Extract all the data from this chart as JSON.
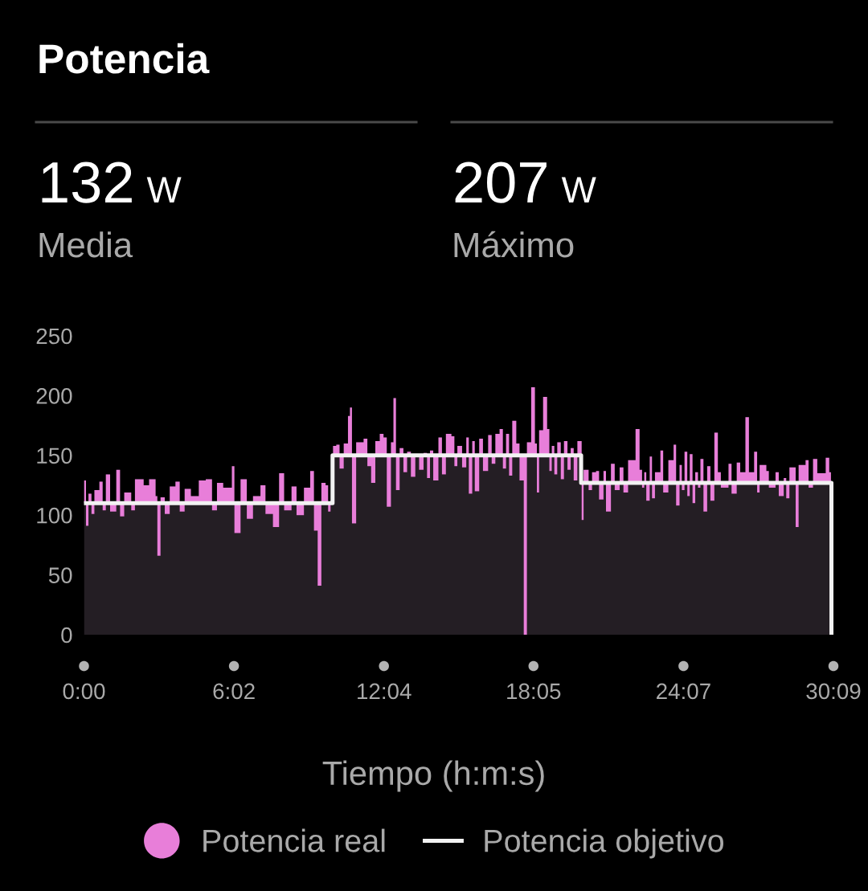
{
  "chart_data": {
    "type": "area",
    "title": "Potencia",
    "xlabel": "Tiempo (h:m:s)",
    "annotations": [
      "132 W",
      "Media",
      "207 W",
      "Máximo"
    ],
    "xlim": [
      0,
      30.15
    ],
    "xticks": [
      {
        "value": 0,
        "label": "0:00"
      },
      {
        "value": 6.033,
        "label": "6:02"
      },
      {
        "value": 12.067,
        "label": "12:04"
      },
      {
        "value": 18.083,
        "label": "18:05"
      },
      {
        "value": 24.117,
        "label": "24:07"
      },
      {
        "value": 30.15,
        "label": "30:09"
      }
    ],
    "ylim": [
      0,
      250
    ],
    "yticks": [
      0,
      50,
      100,
      150,
      200,
      250
    ],
    "legend": "bottom",
    "series": [
      {
        "name": "Potencia real",
        "color": "#e87ed9",
        "x": [
          0.0,
          0.08,
          0.18,
          0.3,
          0.42,
          0.62,
          0.75,
          0.88,
          1.05,
          1.3,
          1.45,
          1.62,
          1.9,
          2.05,
          2.4,
          2.62,
          2.88,
          2.95,
          3.08,
          3.25,
          3.45,
          3.68,
          3.85,
          4.05,
          4.3,
          4.62,
          4.9,
          5.15,
          5.35,
          5.6,
          5.95,
          6.05,
          6.3,
          6.55,
          6.8,
          7.1,
          7.3,
          7.6,
          7.85,
          8.05,
          8.35,
          8.55,
          8.85,
          9.1,
          9.25,
          9.4,
          9.55,
          9.72,
          9.82,
          9.92,
          10.02,
          10.15,
          10.28,
          10.45,
          10.62,
          10.7,
          10.78,
          10.95,
          11.25,
          11.4,
          11.55,
          11.72,
          11.9,
          12.05,
          12.18,
          12.35,
          12.45,
          12.55,
          12.7,
          12.85,
          13.0,
          13.15,
          13.33,
          13.48,
          13.66,
          13.8,
          13.92,
          14.05,
          14.26,
          14.4,
          14.56,
          14.78,
          14.9,
          15.02,
          15.21,
          15.38,
          15.48,
          15.62,
          15.72,
          15.9,
          16.05,
          16.26,
          16.4,
          16.55,
          16.72,
          16.85,
          16.98,
          17.1,
          17.23,
          17.39,
          17.52,
          17.69,
          17.82,
          17.99,
          18.14,
          18.22,
          18.31,
          18.47,
          18.63,
          18.72,
          18.82,
          18.92,
          19.04,
          19.18,
          19.31,
          19.45,
          19.58,
          19.7,
          19.85,
          20.02,
          20.1,
          20.3,
          20.44,
          20.6,
          20.72,
          20.9,
          21.0,
          21.2,
          21.35,
          21.55,
          21.7,
          21.89,
          22.19,
          22.35,
          22.45,
          22.54,
          22.62,
          22.76,
          22.85,
          22.97,
          23.19,
          23.3,
          23.51,
          23.72,
          23.82,
          23.96,
          24.05,
          24.16,
          24.27,
          24.37,
          24.48,
          24.59,
          24.7,
          24.8,
          24.92,
          25.07,
          25.2,
          25.36,
          25.5,
          25.62,
          25.93,
          26.05,
          26.26,
          26.4,
          26.61,
          26.75,
          26.96,
          27.08,
          27.18,
          27.45,
          27.55,
          27.82,
          27.95,
          28.15,
          28.25,
          28.38,
          28.63,
          28.75,
          29.03,
          29.15,
          29.33,
          29.5,
          29.84,
          29.98,
          30.05
        ],
        "values": [
          129,
          91,
          118,
          101,
          121,
          128,
          104,
          134,
          103,
          138,
          99,
          119,
          104,
          130,
          125,
          130,
          116,
          66,
          115,
          101,
          124,
          128,
          103,
          122,
          116,
          129,
          130,
          104,
          127,
          123,
          141,
          85,
          130,
          97,
          116,
          125,
          101,
          90,
          135,
          104,
          124,
          100,
          123,
          137,
          87,
          41,
          127,
          125,
          103,
          112,
          158,
          159,
          139,
          160,
          183,
          190,
          93,
          161,
          164,
          141,
          127,
          162,
          168,
          165,
          107,
          161,
          198,
          121,
          156,
          136,
          153,
          132,
          151,
          138,
          152,
          131,
          154,
          129,
          165,
          134,
          168,
          166,
          141,
          158,
          140,
          165,
          118,
          162,
          120,
          164,
          137,
          167,
          143,
          168,
          172,
          139,
          168,
          133,
          179,
          160,
          129,
          0,
          161,
          207,
          160,
          119,
          171,
          199,
          172,
          137,
          158,
          134,
          161,
          130,
          162,
          138,
          156,
          129,
          162,
          96,
          138,
          121,
          136,
          137,
          113,
          137,
          103,
          143,
          121,
          140,
          119,
          146,
          172,
          138,
          123,
          136,
          112,
          149,
          114,
          136,
          154,
          119,
          146,
          159,
          108,
          142,
          121,
          153,
          116,
          151,
          110,
          136,
          123,
          147,
          103,
          141,
          112,
          169,
          136,
          123,
          143,
          118,
          144,
          136,
          182,
          136,
          153,
          119,
          142,
          137,
          123,
          136,
          116,
          131,
          114,
          140,
          90,
          142,
          146,
          123,
          147,
          135,
          148,
          136,
          67
        ]
      },
      {
        "name": "Potencia objetivo",
        "type": "step",
        "color": "#f2f2f2",
        "x": [
          0,
          10,
          20,
          30.07
        ],
        "values": [
          110,
          150,
          127,
          0
        ]
      }
    ]
  }
}
